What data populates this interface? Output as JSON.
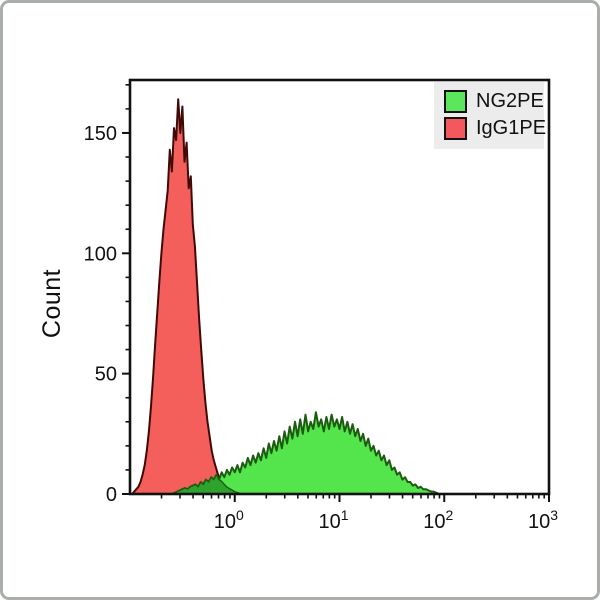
{
  "figure": {
    "kind": "flow-cytometry-histogram-overlay",
    "y_axis_label": "Count",
    "colors": {
      "red_fill": "#f45f5c",
      "red_stroke": "#3f0a08",
      "green_fill": "#54e44b",
      "green_stroke": "#1c5c10",
      "overlap_fill": "#2da32d",
      "axis": "#111111",
      "legend_bg": "#ececec",
      "frame_border": "#a9aeab"
    }
  },
  "legend": {
    "items": [
      {
        "label": "NG2PE",
        "swatch_color": "#5ce65c",
        "swatch_name": "green-swatch"
      },
      {
        "label": "IgG1PE",
        "swatch_color": "#f2585c",
        "swatch_name": "red-swatch"
      }
    ]
  },
  "chart_data": {
    "type": "area",
    "x_scale": "log10",
    "x_log_min": -1,
    "x_log_max": 3,
    "x_major_tick_logs": [
      0,
      1,
      2,
      3
    ],
    "x_tick_labels": [
      {
        "base": "10",
        "exp": "0",
        "log": 0
      },
      {
        "base": "10",
        "exp": "1",
        "log": 1
      },
      {
        "base": "10",
        "exp": "2",
        "log": 2
      },
      {
        "base": "10",
        "exp": "3",
        "log": 3
      }
    ],
    "x_minor_decades": [
      -1,
      0,
      1,
      2
    ],
    "y_label": "Count",
    "ylim": [
      0,
      172
    ],
    "y_major_ticks": [
      0,
      50,
      100,
      150
    ],
    "y_minor_step": 10,
    "grid": false,
    "legend_position": "top-right",
    "series": [
      {
        "name": "IgG1PE",
        "fill": "#f45f5c",
        "stroke": "#3f0a08",
        "log_start": -0.98,
        "log_step": 0.02,
        "counts": [
          0,
          1,
          2,
          3,
          5,
          8,
          12,
          18,
          26,
          36,
          48,
          62,
          75,
          88,
          100,
          110,
          118,
          126,
          143,
          134,
          152,
          147,
          164,
          150,
          161,
          138,
          146,
          127,
          132,
          112,
          103,
          88,
          73,
          60,
          48,
          38,
          30,
          24,
          18,
          14,
          11,
          8,
          6,
          5,
          4,
          3,
          2.5,
          2,
          1.5,
          1,
          0.7,
          0.4,
          0
        ]
      },
      {
        "name": "NG2PE",
        "fill": "#54e44b",
        "stroke": "#1c5c10",
        "log_start": -0.6,
        "log_step": 0.025,
        "counts": [
          0,
          0.5,
          1,
          1.5,
          2,
          2.5,
          2,
          3,
          3.5,
          4,
          3,
          5,
          4,
          6,
          5,
          7,
          6,
          8,
          6,
          9,
          7,
          10,
          8,
          11,
          9,
          12,
          9,
          13,
          11,
          15,
          12,
          16,
          13,
          17,
          14,
          19,
          15,
          21,
          17,
          22,
          18,
          24,
          19,
          26,
          21,
          28,
          23,
          30,
          24,
          31,
          25,
          33,
          26,
          30,
          27,
          34,
          28,
          31,
          26,
          32,
          27,
          33,
          28,
          31,
          27,
          32,
          26,
          30,
          25,
          29,
          24,
          27,
          22,
          25,
          20,
          23,
          18,
          20,
          16,
          18,
          14,
          16,
          12,
          14,
          10,
          11,
          8,
          9,
          6,
          7,
          5,
          5,
          3.5,
          4,
          2.5,
          3,
          2,
          2,
          1.5,
          1,
          1,
          0.5,
          0
        ]
      }
    ]
  }
}
